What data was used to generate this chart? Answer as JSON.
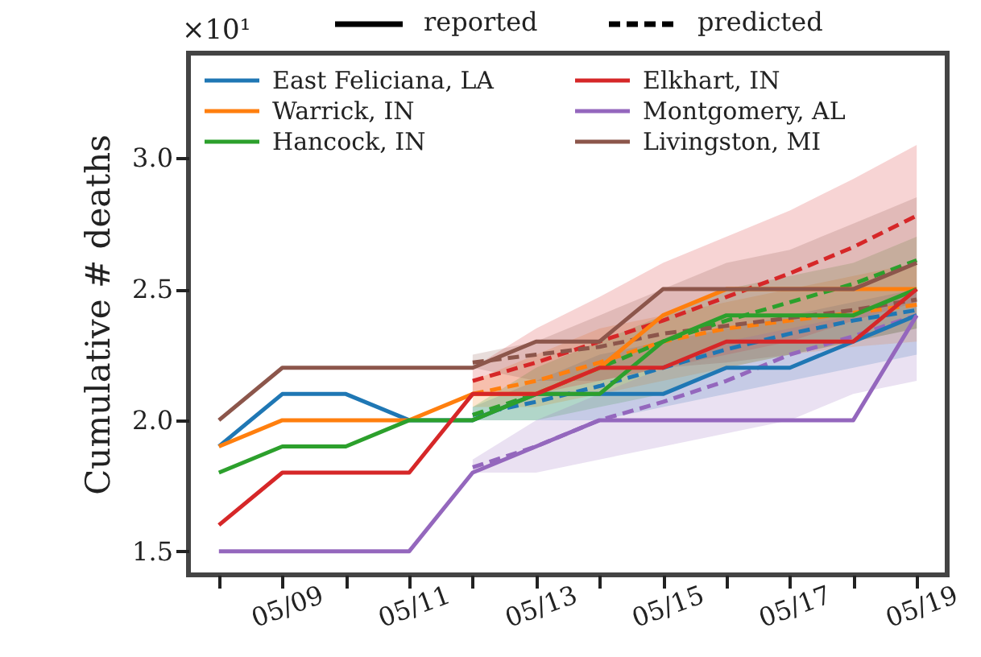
{
  "chart_data": {
    "type": "line",
    "ylabel": "Cumulative # deaths",
    "categories": [
      null,
      "05/09",
      null,
      "05/11",
      null,
      "05/13",
      null,
      "05/15",
      null,
      "05/17",
      null,
      "05/19"
    ],
    "ylim": [
      1.41,
      3.4
    ],
    "yticks": [
      1.5,
      {
        "value": 2.0,
        "label": "2.0"
      },
      2.5,
      {
        "value": 3.0,
        "label": "3.0"
      }
    ],
    "grid": false,
    "legend": "top",
    "marker": "none",
    "annotations": [
      "×10¹",
      "reported",
      "predicted"
    ],
    "series": [
      {
        "name": "East Feliciana, LA",
        "color": "#1f77b4",
        "line_style": "solid",
        "values": [
          1.9,
          2.1,
          2.1,
          2.0,
          2.0,
          2.1,
          2.1,
          2.1,
          2.2,
          2.2,
          2.3,
          2.4
        ]
      },
      {
        "name": "Warrick, IN",
        "color": "#ff7f0e",
        "line_style": "solid",
        "values": [
          1.9,
          2.0,
          2.0,
          2.0,
          2.1,
          2.1,
          2.2,
          2.4,
          2.5,
          2.5,
          2.5,
          2.5
        ]
      },
      {
        "name": "Hancock, IN",
        "color": "#2ca02c",
        "line_style": "solid",
        "values": [
          1.8,
          1.9,
          1.9,
          2.0,
          2.0,
          2.1,
          2.1,
          2.3,
          2.4,
          2.4,
          2.4,
          2.5
        ]
      },
      {
        "name": "Elkhart, IN",
        "color": "#d62728",
        "line_style": "solid",
        "values": [
          1.6,
          1.8,
          1.8,
          1.8,
          2.1,
          2.1,
          2.2,
          2.2,
          2.3,
          2.3,
          2.3,
          2.5
        ]
      },
      {
        "name": "Montgomery, AL",
        "color": "#9467bd",
        "line_style": "solid",
        "values": [
          1.5,
          1.5,
          1.5,
          1.5,
          1.8,
          1.9,
          2.0,
          2.0,
          2.0,
          2.0,
          2.0,
          2.4
        ]
      },
      {
        "name": "Livingston, MI",
        "color": "#8c564b",
        "line_style": "solid",
        "values": [
          2.0,
          2.2,
          2.2,
          2.2,
          2.2,
          2.3,
          2.3,
          2.5,
          2.5,
          2.5,
          2.5,
          2.6
        ]
      },
      {
        "color": "#1f77b4",
        "line_style": "dashed",
        "values": [
          null,
          null,
          null,
          null,
          2.02,
          2.07,
          2.13,
          2.2,
          2.27,
          2.33,
          2.38,
          2.42
        ],
        "lower": [
          null,
          null,
          null,
          null,
          2.0,
          2.0,
          2.0,
          2.05,
          2.1,
          2.15,
          2.2,
          2.25
        ],
        "upper": [
          null,
          null,
          null,
          null,
          2.05,
          2.15,
          2.25,
          2.3,
          2.35,
          2.4,
          2.45,
          2.5
        ]
      },
      {
        "color": "#ff7f0e",
        "line_style": "dashed",
        "values": [
          null,
          null,
          null,
          null,
          2.1,
          2.15,
          2.22,
          2.3,
          2.35,
          2.38,
          2.41,
          2.44
        ],
        "lower": [
          null,
          null,
          null,
          null,
          2.05,
          2.05,
          2.1,
          2.15,
          2.2,
          2.25,
          2.28,
          2.3
        ],
        "upper": [
          null,
          null,
          null,
          null,
          2.15,
          2.25,
          2.35,
          2.4,
          2.45,
          2.5,
          2.55,
          2.6
        ]
      },
      {
        "color": "#2ca02c",
        "line_style": "dashed",
        "values": [
          null,
          null,
          null,
          null,
          2.02,
          2.1,
          2.2,
          2.3,
          2.38,
          2.45,
          2.52,
          2.61
        ],
        "lower": [
          null,
          null,
          null,
          null,
          2.0,
          2.0,
          2.05,
          2.1,
          2.2,
          2.25,
          2.3,
          2.35
        ],
        "upper": [
          null,
          null,
          null,
          null,
          2.05,
          2.2,
          2.3,
          2.4,
          2.5,
          2.55,
          2.6,
          2.7
        ]
      },
      {
        "color": "#d62728",
        "line_style": "dashed",
        "values": [
          null,
          null,
          null,
          null,
          2.15,
          2.22,
          2.3,
          2.38,
          2.47,
          2.56,
          2.66,
          2.78
        ],
        "lower": [
          null,
          null,
          null,
          null,
          2.1,
          2.1,
          2.15,
          2.2,
          2.25,
          2.3,
          2.38,
          2.45
        ],
        "upper": [
          null,
          null,
          null,
          null,
          2.2,
          2.35,
          2.47,
          2.6,
          2.7,
          2.8,
          2.92,
          3.05
        ]
      },
      {
        "color": "#9467bd",
        "line_style": "dashed",
        "values": [
          null,
          null,
          null,
          null,
          1.82,
          1.9,
          2.0,
          2.07,
          2.15,
          2.25,
          2.32,
          2.4
        ],
        "lower": [
          null,
          null,
          null,
          null,
          1.8,
          1.8,
          1.85,
          1.9,
          1.95,
          2.0,
          2.1,
          2.15
        ],
        "upper": [
          null,
          null,
          null,
          null,
          1.85,
          2.0,
          2.1,
          2.2,
          2.3,
          2.35,
          2.4,
          2.5
        ]
      },
      {
        "color": "#8c564b",
        "line_style": "dashed",
        "values": [
          null,
          null,
          null,
          null,
          2.22,
          2.25,
          2.28,
          2.33,
          2.36,
          2.39,
          2.42,
          2.46
        ],
        "lower": [
          null,
          null,
          null,
          null,
          2.2,
          2.15,
          2.15,
          2.2,
          2.22,
          2.25,
          2.3,
          2.35
        ],
        "upper": [
          null,
          null,
          null,
          null,
          2.25,
          2.3,
          2.4,
          2.5,
          2.6,
          2.65,
          2.75,
          2.85
        ]
      }
    ]
  }
}
